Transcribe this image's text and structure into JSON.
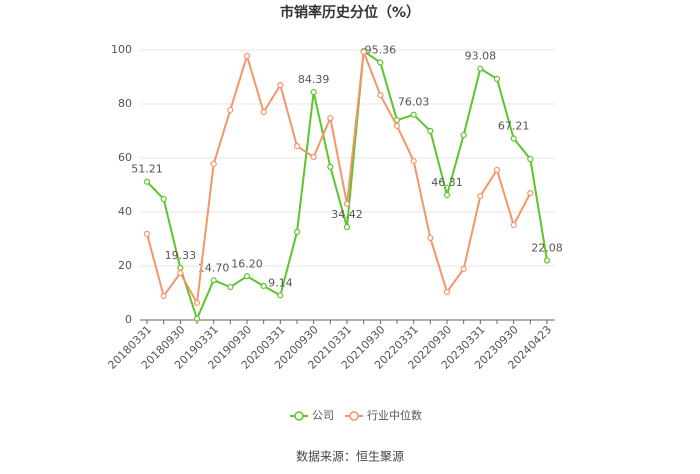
{
  "chart_data": {
    "type": "line",
    "title": "市销率历史分位（%）",
    "categories": [
      "20180331",
      null,
      "20180930",
      null,
      "20190331",
      null,
      "20190930",
      null,
      "20200331",
      null,
      "20200930",
      null,
      "20210331",
      null,
      "20210930",
      null,
      "20220331",
      null,
      "20220930",
      null,
      "20230331",
      null,
      "20230930",
      null,
      "20240423"
    ],
    "series": [
      {
        "name": "公司",
        "color": "#5cc52a",
        "values": [
          51.21,
          44.8,
          19.33,
          0.5,
          14.7,
          12.2,
          16.2,
          12.6,
          9.14,
          32.6,
          84.39,
          56.7,
          34.42,
          99.6,
          95.36,
          74,
          76.03,
          70,
          46.31,
          68.5,
          93.08,
          89.3,
          67.21,
          59.6,
          22.08
        ],
        "value_labels": [
          "51.21",
          null,
          "19.33",
          null,
          "14.70",
          null,
          "16.20",
          null,
          "9.14",
          null,
          "84.39",
          null,
          "34.42",
          null,
          "95.36",
          null,
          "76.03",
          null,
          "46.31",
          null,
          "93.08",
          null,
          "67.21",
          null,
          "22.08"
        ]
      },
      {
        "name": "行业中位数",
        "color": "#f4956a",
        "values": [
          31.9,
          8.9,
          17.4,
          6.3,
          57.8,
          77.8,
          97.8,
          77,
          87,
          64.4,
          60.4,
          74.8,
          43,
          99.3,
          83.3,
          71.9,
          58.9,
          30.4,
          10.4,
          18.9,
          45.9,
          55.6,
          35.2,
          47,
          null
        ]
      }
    ],
    "ylim": [
      0,
      100
    ],
    "yticks": [
      0,
      20,
      40,
      60,
      80,
      100
    ],
    "grid": true,
    "source": "数据来源：恒生聚源"
  }
}
